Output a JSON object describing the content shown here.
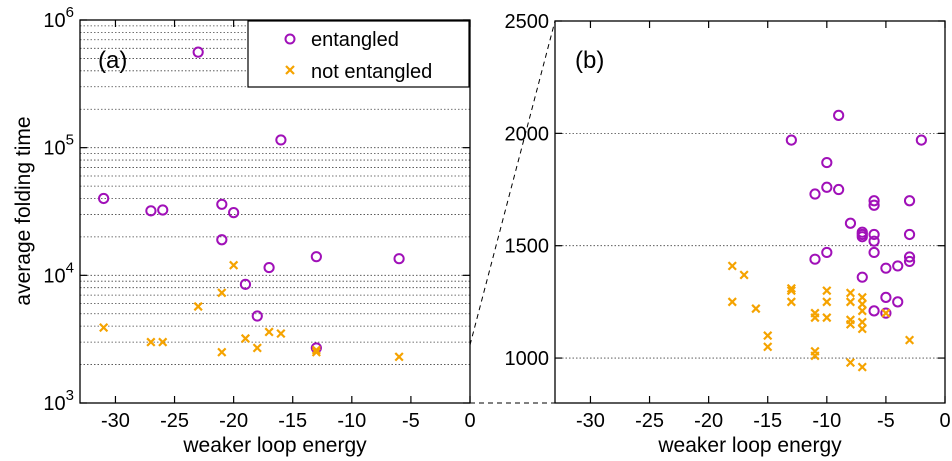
{
  "colors": {
    "entangled": "#a010b8",
    "not_entangled": "#f5a300"
  },
  "chart_data": [
    {
      "type": "scatter",
      "panel_tag": "(a)",
      "xlabel": "weaker loop energy",
      "ylabel": "average folding time",
      "xlim": [
        -33,
        0
      ],
      "ylim": [
        1000,
        1000000
      ],
      "y_scale": "log",
      "x_ticks": [
        -30,
        -25,
        -20,
        -15,
        -10,
        -5,
        0
      ],
      "x_tick_labels": [
        "-30",
        "-25",
        "-20",
        "-15",
        "-10",
        "-5",
        "0"
      ],
      "y_ticks": [
        1000,
        10000,
        100000,
        1000000
      ],
      "y_tick_labels": [
        {
          "base": "10",
          "exp": "3"
        },
        {
          "base": "10",
          "exp": "4"
        },
        {
          "base": "10",
          "exp": "5"
        },
        {
          "base": "10",
          "exp": "6"
        }
      ],
      "grid": "horizontal",
      "legend": {
        "position": "top-right",
        "entries": [
          "entangled",
          "not entangled"
        ]
      },
      "series": [
        {
          "name": "entangled",
          "marker": "circle",
          "x": [
            -23,
            -16,
            -31,
            -27,
            -26,
            -21,
            -20,
            -21,
            -17,
            -13,
            -6,
            -19,
            -18,
            -13
          ],
          "y": [
            560000,
            115000,
            40000,
            32000,
            32500,
            36000,
            31000,
            19000,
            11500,
            14000,
            13500,
            8500,
            4800,
            2700
          ]
        },
        {
          "name": "not entangled",
          "marker": "x",
          "x": [
            -20,
            -21,
            -23,
            -31,
            -27,
            -26,
            -19,
            -17,
            -16,
            -18,
            -21,
            -13,
            -13,
            -6
          ],
          "y": [
            12000,
            7300,
            5700,
            3900,
            3000,
            3000,
            3200,
            3600,
            3500,
            2700,
            2500,
            2500,
            2600,
            2300
          ]
        }
      ]
    },
    {
      "type": "scatter",
      "panel_tag": "(b)",
      "xlabel": "weaker loop energy",
      "xlim": [
        -33,
        0
      ],
      "ylim": [
        800,
        2500
      ],
      "x_ticks": [
        -30,
        -25,
        -20,
        -15,
        -10,
        -5,
        0
      ],
      "x_tick_labels": [
        "-30",
        "-25",
        "-20",
        "-15",
        "-10",
        "-5",
        "0"
      ],
      "y_ticks": [
        1000,
        1500,
        2000,
        2500
      ],
      "y_tick_labels": [
        "1000",
        "1500",
        "2000",
        "2500"
      ],
      "grid": "horizontal",
      "series": [
        {
          "name": "entangled",
          "marker": "circle",
          "x": [
            -13,
            -9,
            -2,
            -10,
            -11,
            -10,
            -9,
            -3,
            -6,
            -6,
            -8,
            -7,
            -7,
            -7,
            -6,
            -6,
            -3,
            -6,
            -10,
            -11,
            -3,
            -3,
            -4,
            -5,
            -7,
            -5,
            -4,
            -6,
            -5
          ],
          "y": [
            1970,
            2080,
            1970,
            1870,
            1730,
            1760,
            1750,
            1700,
            1700,
            1680,
            1600,
            1560,
            1550,
            1540,
            1550,
            1520,
            1550,
            1470,
            1470,
            1440,
            1450,
            1430,
            1410,
            1400,
            1360,
            1270,
            1250,
            1210,
            1200
          ]
        },
        {
          "name": "not entangled",
          "marker": "x",
          "x": [
            -18,
            -17,
            -13,
            -13,
            -10,
            -8,
            -18,
            -16,
            -13,
            -10,
            -8,
            -7,
            -7,
            -7,
            -11,
            -11,
            -10,
            -8,
            -7,
            -8,
            -7,
            -5,
            -15,
            -15,
            -11,
            -11,
            -8,
            -7,
            -3
          ],
          "y": [
            1410,
            1370,
            1310,
            1300,
            1300,
            1290,
            1250,
            1220,
            1250,
            1250,
            1250,
            1270,
            1240,
            1210,
            1200,
            1180,
            1180,
            1170,
            1160,
            1150,
            1130,
            1200,
            1100,
            1050,
            1030,
            1010,
            980,
            960,
            1080
          ]
        }
      ]
    }
  ]
}
